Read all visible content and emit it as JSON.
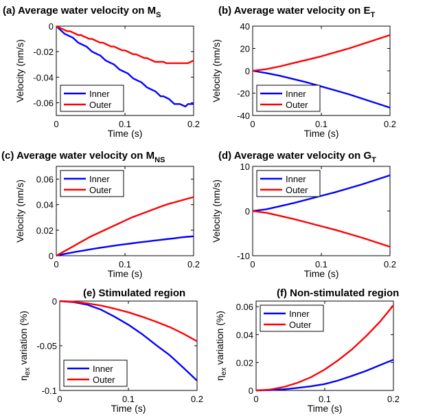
{
  "figure": {
    "background": "#ffffff"
  },
  "chart_data": [
    {
      "id": "a",
      "type": "line",
      "title": "(a) Average water velocity on M",
      "title_sub": "S",
      "xlabel": "Time (s)",
      "ylabel": "Velocity (nm/s)",
      "xlim": [
        0,
        0.2
      ],
      "ylim": [
        -0.07,
        0
      ],
      "xticks": [
        0,
        0.1,
        0.2
      ],
      "xtick_labels": [
        "0",
        "0.1",
        "0.2"
      ],
      "yticks": [
        0,
        -0.02,
        -0.04,
        -0.06
      ],
      "ytick_labels": [
        "0",
        "-0.02",
        "-0.04",
        "-0.06"
      ],
      "grid": false,
      "legend": "bottom-left",
      "x": [
        0,
        0.004,
        0.008,
        0.012,
        0.016,
        0.02,
        0.024,
        0.028,
        0.032,
        0.036,
        0.04,
        0.044,
        0.048,
        0.052,
        0.056,
        0.06,
        0.064,
        0.068,
        0.072,
        0.076,
        0.08,
        0.084,
        0.088,
        0.092,
        0.096,
        0.1,
        0.104,
        0.108,
        0.112,
        0.116,
        0.12,
        0.124,
        0.128,
        0.132,
        0.136,
        0.14,
        0.144,
        0.148,
        0.152,
        0.156,
        0.16,
        0.164,
        0.168,
        0.172,
        0.176,
        0.18,
        0.184,
        0.188,
        0.192,
        0.196,
        0.2
      ],
      "series": [
        {
          "name": "Inner",
          "color": "#0000ff",
          "values": [
            0,
            -0.002,
            -0.004,
            -0.006,
            -0.007,
            -0.008,
            -0.009,
            -0.011,
            -0.013,
            -0.014,
            -0.015,
            -0.016,
            -0.018,
            -0.02,
            -0.021,
            -0.022,
            -0.023,
            -0.025,
            -0.027,
            -0.028,
            -0.029,
            -0.03,
            -0.032,
            -0.034,
            -0.035,
            -0.036,
            -0.037,
            -0.039,
            -0.041,
            -0.042,
            -0.043,
            -0.044,
            -0.046,
            -0.048,
            -0.049,
            -0.05,
            -0.051,
            -0.053,
            -0.055,
            -0.055,
            -0.056,
            -0.057,
            -0.059,
            -0.061,
            -0.061,
            -0.061,
            -0.062,
            -0.063,
            -0.061,
            -0.061,
            -0.061
          ]
        },
        {
          "name": "Outer",
          "color": "#ff0000",
          "values": [
            0,
            -0.001,
            -0.002,
            -0.003,
            -0.004,
            -0.004,
            -0.005,
            -0.006,
            -0.007,
            -0.007,
            -0.008,
            -0.009,
            -0.01,
            -0.01,
            -0.011,
            -0.012,
            -0.013,
            -0.013,
            -0.014,
            -0.015,
            -0.016,
            -0.016,
            -0.017,
            -0.018,
            -0.019,
            -0.019,
            -0.02,
            -0.021,
            -0.022,
            -0.022,
            -0.023,
            -0.024,
            -0.025,
            -0.025,
            -0.026,
            -0.027,
            -0.028,
            -0.028,
            -0.028,
            -0.028,
            -0.029,
            -0.029,
            -0.029,
            -0.029,
            -0.029,
            -0.029,
            -0.029,
            -0.029,
            -0.029,
            -0.028,
            -0.027
          ]
        }
      ]
    },
    {
      "id": "b",
      "type": "line",
      "title": "(b) Average water velocity on E",
      "title_sub": "T",
      "xlabel": "Time (s)",
      "ylabel": "Velocity (nm/s)",
      "xlim": [
        0,
        0.2
      ],
      "ylim": [
        -40,
        40
      ],
      "xticks": [
        0,
        0.1,
        0.2
      ],
      "xtick_labels": [
        "0",
        "0.1",
        "0.2"
      ],
      "yticks": [
        40,
        20,
        0,
        -20,
        -40
      ],
      "ytick_labels": [
        "40",
        "20",
        "0",
        "-20",
        "-40"
      ],
      "grid": false,
      "legend": "bottom-left",
      "x": [
        0,
        0.02,
        0.04,
        0.06,
        0.08,
        0.1,
        0.12,
        0.14,
        0.16,
        0.18,
        0.2
      ],
      "series": [
        {
          "name": "Inner",
          "color": "#0000ff",
          "values": [
            0,
            -2,
            -4.5,
            -7.5,
            -10.5,
            -14,
            -17.5,
            -21,
            -25,
            -29,
            -33
          ]
        },
        {
          "name": "Outer",
          "color": "#ff0000",
          "values": [
            0,
            1.5,
            4,
            7,
            10,
            13,
            16.5,
            20,
            24,
            28,
            32
          ]
        }
      ]
    },
    {
      "id": "c",
      "type": "line",
      "title": "(c) Average water velocity on M",
      "title_sub": "NS",
      "xlabel": "Time (s)",
      "ylabel": "Velocity (nm/s)",
      "xlim": [
        0,
        0.2
      ],
      "ylim": [
        0,
        0.07
      ],
      "xticks": [
        0,
        0.1,
        0.2
      ],
      "xtick_labels": [
        "0",
        "0.1",
        "0.2"
      ],
      "yticks": [
        0,
        0.02,
        0.04,
        0.06
      ],
      "ytick_labels": [
        "0",
        "0.02",
        "0.04",
        "0.06"
      ],
      "grid": false,
      "legend": "top-left",
      "x": [
        0,
        0.01,
        0.02,
        0.03,
        0.04,
        0.05,
        0.06,
        0.07,
        0.08,
        0.09,
        0.1,
        0.11,
        0.12,
        0.13,
        0.14,
        0.15,
        0.16,
        0.17,
        0.18,
        0.19,
        0.2
      ],
      "series": [
        {
          "name": "Inner",
          "color": "#0000ff",
          "values": [
            0,
            0.0012,
            0.0022,
            0.0032,
            0.0041,
            0.005,
            0.0059,
            0.0067,
            0.0075,
            0.0083,
            0.009,
            0.0097,
            0.0104,
            0.011,
            0.0117,
            0.0123,
            0.0129,
            0.0135,
            0.0142,
            0.0148,
            0.0152
          ]
        },
        {
          "name": "Outer",
          "color": "#ff0000",
          "values": [
            0,
            0.003,
            0.006,
            0.009,
            0.012,
            0.015,
            0.0175,
            0.02,
            0.0225,
            0.025,
            0.0275,
            0.03,
            0.032,
            0.034,
            0.036,
            0.038,
            0.04,
            0.0415,
            0.043,
            0.0445,
            0.046
          ]
        }
      ]
    },
    {
      "id": "d",
      "type": "line",
      "title": "(d) Average water velocity on G",
      "title_sub": "T",
      "xlabel": "Time (s)",
      "ylabel": "Velocity (nm/s)",
      "xlim": [
        0,
        0.2
      ],
      "ylim": [
        -10,
        10
      ],
      "xticks": [
        0,
        0.1,
        0.2
      ],
      "xtick_labels": [
        "0",
        "0.1",
        "0.2"
      ],
      "yticks": [
        10,
        0,
        -10
      ],
      "ytick_labels": [
        "10",
        "0",
        "-10"
      ],
      "grid": false,
      "legend": "top-left",
      "x": [
        0,
        0.02,
        0.04,
        0.06,
        0.08,
        0.1,
        0.12,
        0.14,
        0.16,
        0.18,
        0.2
      ],
      "series": [
        {
          "name": "Inner",
          "color": "#0000ff",
          "values": [
            0,
            0.4,
            1.1,
            1.8,
            2.6,
            3.4,
            4.2,
            5.1,
            6.0,
            7.0,
            8.0
          ]
        },
        {
          "name": "Outer",
          "color": "#ff0000",
          "values": [
            0,
            -0.4,
            -1.1,
            -1.8,
            -2.6,
            -3.4,
            -4.2,
            -5.1,
            -6.0,
            -7.0,
            -8.0
          ]
        }
      ]
    },
    {
      "id": "e",
      "type": "line",
      "title": "(e) Stimulated region",
      "title_sub": "",
      "xlabel": "Time (s)",
      "ylabel": "η",
      "ylabel_sub": "ex",
      "ylabel_rest": " variation (%)",
      "xlim": [
        0,
        0.2
      ],
      "ylim": [
        -0.1,
        0
      ],
      "xticks": [
        0,
        0.1,
        0.2
      ],
      "xtick_labels": [
        "0",
        "0.1",
        "0.2"
      ],
      "yticks": [
        0,
        -0.05,
        -0.1
      ],
      "ytick_labels": [
        "0",
        "-0.05",
        "-0.1"
      ],
      "grid": false,
      "legend": "bottom-left",
      "x": [
        0,
        0.02,
        0.04,
        0.06,
        0.08,
        0.1,
        0.12,
        0.14,
        0.16,
        0.18,
        0.2
      ],
      "series": [
        {
          "name": "Inner",
          "color": "#0000ff",
          "values": [
            0,
            -0.0012,
            -0.004,
            -0.0095,
            -0.0175,
            -0.0265,
            -0.037,
            -0.049,
            -0.0605,
            -0.0745,
            -0.089
          ]
        },
        {
          "name": "Outer",
          "color": "#ff0000",
          "values": [
            0,
            -0.0008,
            -0.0025,
            -0.005,
            -0.0085,
            -0.0125,
            -0.0175,
            -0.023,
            -0.029,
            -0.0365,
            -0.045
          ]
        }
      ]
    },
    {
      "id": "f",
      "type": "line",
      "title": "(f) Non-stimulated region",
      "title_sub": "",
      "xlabel": "Time (s)",
      "ylabel": "η",
      "ylabel_sub": "ex",
      "ylabel_rest": " variation (%)",
      "xlim": [
        0,
        0.2
      ],
      "ylim": [
        0,
        0.064
      ],
      "xticks": [
        0,
        0.1,
        0.2
      ],
      "xtick_labels": [
        "0",
        "0.1",
        "0.2"
      ],
      "yticks": [
        0,
        0.02,
        0.04,
        0.06
      ],
      "ytick_labels": [
        "0",
        "0.02",
        "0.04",
        "0.06"
      ],
      "grid": false,
      "legend": "top-left",
      "x": [
        0,
        0.02,
        0.04,
        0.06,
        0.08,
        0.1,
        0.12,
        0.14,
        0.16,
        0.18,
        0.2
      ],
      "series": [
        {
          "name": "Inner",
          "color": "#0000ff",
          "values": [
            0,
            0.0002,
            0.0008,
            0.0018,
            0.003,
            0.0046,
            0.0072,
            0.0105,
            0.014,
            0.018,
            0.022
          ]
        },
        {
          "name": "Outer",
          "color": "#ff0000",
          "values": [
            0,
            0.0006,
            0.0024,
            0.0054,
            0.0095,
            0.015,
            0.0218,
            0.0296,
            0.0388,
            0.049,
            0.061
          ]
        }
      ]
    }
  ]
}
